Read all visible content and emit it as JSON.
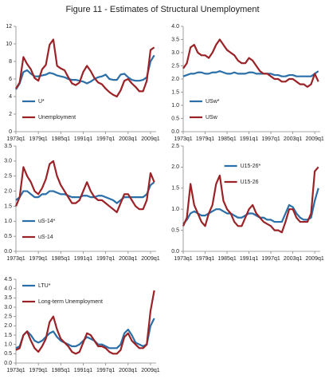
{
  "title": "Figure 11 - Estimates of Structural Unemployment",
  "chart_data": [
    {
      "type": "line",
      "legend": "lower left",
      "x": [
        1973,
        1974,
        1975,
        1976,
        1977,
        1978,
        1979,
        1980,
        1981,
        1982,
        1983,
        1984,
        1985,
        1986,
        1987,
        1988,
        1989,
        1990,
        1991,
        1992,
        1993,
        1994,
        1995,
        1996,
        1997,
        1998,
        1999,
        2000,
        2001,
        2002,
        2003,
        2004,
        2005,
        2006,
        2007,
        2008,
        2009,
        2010
      ],
      "xlim": [
        1973,
        2010.5
      ],
      "xticks": [
        {
          "value": 1973,
          "label": "1973q1"
        },
        {
          "value": 1979,
          "label": "1979q1"
        },
        {
          "value": 1985,
          "label": "1985q1"
        },
        {
          "value": 1991,
          "label": "1991q1"
        },
        {
          "value": 1997,
          "label": "1997q1"
        },
        {
          "value": 2003,
          "label": "2003q1"
        },
        {
          "value": 2009,
          "label": "2009q1"
        }
      ],
      "ylim": [
        0,
        12
      ],
      "yticks": [
        0,
        2,
        4,
        6,
        8,
        10,
        12
      ],
      "series": [
        {
          "name": "U*",
          "color": "#2a6fa8",
          "values": [
            4.8,
            5.5,
            6.8,
            7.0,
            6.6,
            6.3,
            6.3,
            6.4,
            6.5,
            6.7,
            6.6,
            6.4,
            6.3,
            6.2,
            6.0,
            5.9,
            5.9,
            5.8,
            5.7,
            5.5,
            5.7,
            6.0,
            6.2,
            6.3,
            6.5,
            6.0,
            5.9,
            5.9,
            6.5,
            6.6,
            6.2,
            5.9,
            5.8,
            5.8,
            5.9,
            6.2,
            8.0,
            8.7
          ]
        },
        {
          "name": "Unemployment",
          "color": "#9b2226",
          "values": [
            4.9,
            5.6,
            8.5,
            7.7,
            7.1,
            6.1,
            5.8,
            7.1,
            7.6,
            9.9,
            10.5,
            7.5,
            7.2,
            7.0,
            6.2,
            5.5,
            5.3,
            5.6,
            6.8,
            7.5,
            6.9,
            6.1,
            5.6,
            5.4,
            4.9,
            4.5,
            4.2,
            4.0,
            4.7,
            5.8,
            6.0,
            5.5,
            5.1,
            4.6,
            4.6,
            5.8,
            9.3,
            9.6
          ]
        }
      ]
    },
    {
      "type": "line",
      "legend": "lower left",
      "x": [
        1973,
        1974,
        1975,
        1976,
        1977,
        1978,
        1979,
        1980,
        1981,
        1982,
        1983,
        1984,
        1985,
        1986,
        1987,
        1988,
        1989,
        1990,
        1991,
        1992,
        1993,
        1994,
        1995,
        1996,
        1997,
        1998,
        1999,
        2000,
        2001,
        2002,
        2003,
        2004,
        2005,
        2006,
        2007,
        2008,
        2009,
        2010
      ],
      "xlim": [
        1973,
        2010.5
      ],
      "xticks": [
        {
          "value": 1973,
          "label": "1973q1"
        },
        {
          "value": 1979,
          "label": "1979q1"
        },
        {
          "value": 1985,
          "label": "1985q1"
        },
        {
          "value": 1991,
          "label": "1991q1"
        },
        {
          "value": 1997,
          "label": "1997q1"
        },
        {
          "value": 2003,
          "label": "2003q1"
        },
        {
          "value": 2009,
          "label": "2009q1"
        }
      ],
      "ylim": [
        0,
        4
      ],
      "yticks": [
        {
          "value": 0,
          "label": "0.0"
        },
        0.5,
        {
          "value": 1,
          "label": "1.0"
        },
        1.5,
        {
          "value": 2,
          "label": "2.0"
        },
        2.5,
        {
          "value": 3,
          "label": "3.0"
        },
        3.5,
        {
          "value": 4,
          "label": "4.0"
        }
      ],
      "series": [
        {
          "name": "USw*",
          "color": "#2a6fa8",
          "values": [
            2.1,
            2.15,
            2.2,
            2.2,
            2.25,
            2.25,
            2.2,
            2.2,
            2.25,
            2.25,
            2.3,
            2.25,
            2.2,
            2.2,
            2.25,
            2.2,
            2.2,
            2.2,
            2.25,
            2.25,
            2.2,
            2.2,
            2.2,
            2.2,
            2.2,
            2.15,
            2.15,
            2.1,
            2.1,
            2.15,
            2.15,
            2.1,
            2.1,
            2.1,
            2.1,
            2.1,
            2.2,
            2.3
          ]
        },
        {
          "name": "USw",
          "color": "#9b2226",
          "values": [
            2.4,
            2.6,
            3.2,
            3.3,
            3.0,
            2.9,
            2.9,
            2.8,
            3.0,
            3.3,
            3.5,
            3.3,
            3.1,
            3.0,
            2.9,
            2.7,
            2.6,
            2.6,
            2.8,
            2.7,
            2.5,
            2.3,
            2.2,
            2.2,
            2.1,
            2.0,
            2.0,
            1.9,
            1.9,
            2.0,
            2.0,
            1.9,
            1.8,
            1.8,
            1.7,
            1.8,
            2.2,
            1.9
          ]
        }
      ]
    },
    {
      "type": "line",
      "legend": "lower left",
      "x": [
        1973,
        1974,
        1975,
        1976,
        1977,
        1978,
        1979,
        1980,
        1981,
        1982,
        1983,
        1984,
        1985,
        1986,
        1987,
        1988,
        1989,
        1990,
        1991,
        1992,
        1993,
        1994,
        1995,
        1996,
        1997,
        1998,
        1999,
        2000,
        2001,
        2002,
        2003,
        2004,
        2005,
        2006,
        2007,
        2008,
        2009,
        2010
      ],
      "xlim": [
        1973,
        2010.5
      ],
      "xticks": [
        {
          "value": 1973,
          "label": "1973q1"
        },
        {
          "value": 1979,
          "label": "1979q1"
        },
        {
          "value": 1985,
          "label": "1985q1"
        },
        {
          "value": 1991,
          "label": "1991q1"
        },
        {
          "value": 1997,
          "label": "1997q1"
        },
        {
          "value": 2003,
          "label": "2003q1"
        },
        {
          "value": 2009,
          "label": "2009q1"
        }
      ],
      "ylim": [
        0,
        3.5
      ],
      "yticks": [
        {
          "value": 0,
          "label": "0.0"
        },
        0.5,
        {
          "value": 1,
          "label": "1.0"
        },
        1.5,
        {
          "value": 2,
          "label": "2.0"
        },
        2.5,
        {
          "value": 3,
          "label": "3.0"
        },
        3.5
      ],
      "series": [
        {
          "name": "uS-14*",
          "color": "#2a6fa8",
          "values": [
            1.7,
            1.8,
            2.0,
            2.0,
            1.9,
            1.8,
            1.8,
            1.9,
            1.9,
            2.0,
            2.0,
            1.95,
            1.9,
            1.9,
            1.85,
            1.8,
            1.8,
            1.8,
            1.85,
            1.85,
            1.8,
            1.8,
            1.85,
            1.85,
            1.8,
            1.75,
            1.7,
            1.6,
            1.7,
            1.8,
            1.8,
            1.8,
            1.8,
            1.8,
            1.8,
            1.9,
            2.2,
            2.3
          ]
        },
        {
          "name": "uS-14",
          "color": "#9b2226",
          "values": [
            1.5,
            1.8,
            2.8,
            2.5,
            2.3,
            2.0,
            1.9,
            2.1,
            2.4,
            2.9,
            3.0,
            2.5,
            2.2,
            2.0,
            1.8,
            1.6,
            1.6,
            1.7,
            2.0,
            2.3,
            2.0,
            1.8,
            1.7,
            1.7,
            1.6,
            1.5,
            1.4,
            1.3,
            1.6,
            1.9,
            1.9,
            1.7,
            1.5,
            1.4,
            1.4,
            1.7,
            2.6,
            2.3
          ]
        }
      ]
    },
    {
      "type": "line",
      "legend": "upper right",
      "x": [
        1973,
        1974,
        1975,
        1976,
        1977,
        1978,
        1979,
        1980,
        1981,
        1982,
        1983,
        1984,
        1985,
        1986,
        1987,
        1988,
        1989,
        1990,
        1991,
        1992,
        1993,
        1994,
        1995,
        1996,
        1997,
        1998,
        1999,
        2000,
        2001,
        2002,
        2003,
        2004,
        2005,
        2006,
        2007,
        2008,
        2009,
        2010
      ],
      "xlim": [
        1973,
        2010.5
      ],
      "xticks": [
        {
          "value": 1973,
          "label": "1973q1"
        },
        {
          "value": 1979,
          "label": "1979q1"
        },
        {
          "value": 1985,
          "label": "1985q1"
        },
        {
          "value": 1991,
          "label": "1991q1"
        },
        {
          "value": 1997,
          "label": "1997q1"
        },
        {
          "value": 2003,
          "label": "2003q1"
        },
        {
          "value": 2009,
          "label": "2009q1"
        }
      ],
      "ylim": [
        0,
        2.5
      ],
      "yticks": [
        {
          "value": 0,
          "label": "0.0"
        },
        0.5,
        {
          "value": 1,
          "label": "1.0"
        },
        1.5,
        {
          "value": 2,
          "label": "2.0"
        },
        2.5
      ],
      "series": [
        {
          "name": "U15-26*",
          "color": "#2a6fa8",
          "values": [
            0.65,
            0.75,
            0.9,
            0.95,
            0.9,
            0.85,
            0.85,
            0.9,
            0.95,
            1.0,
            1.0,
            0.95,
            0.9,
            0.9,
            0.85,
            0.8,
            0.8,
            0.85,
            0.9,
            0.9,
            0.85,
            0.8,
            0.8,
            0.75,
            0.75,
            0.7,
            0.7,
            0.7,
            0.9,
            1.1,
            1.05,
            0.9,
            0.8,
            0.75,
            0.75,
            0.8,
            1.2,
            1.5
          ]
        },
        {
          "name": "U15-26",
          "color": "#9b2226",
          "values": [
            0.6,
            0.8,
            1.6,
            1.1,
            0.9,
            0.7,
            0.6,
            0.9,
            1.1,
            1.6,
            1.8,
            1.2,
            1.0,
            0.9,
            0.7,
            0.6,
            0.6,
            0.8,
            1.0,
            1.1,
            0.9,
            0.8,
            0.7,
            0.65,
            0.6,
            0.5,
            0.5,
            0.45,
            0.7,
            1.0,
            1.0,
            0.8,
            0.7,
            0.7,
            0.7,
            0.9,
            1.9,
            2.0
          ]
        }
      ]
    },
    {
      "type": "line",
      "legend": "upper left",
      "x": [
        1973,
        1974,
        1975,
        1976,
        1977,
        1978,
        1979,
        1980,
        1981,
        1982,
        1983,
        1984,
        1985,
        1986,
        1987,
        1988,
        1989,
        1990,
        1991,
        1992,
        1993,
        1994,
        1995,
        1996,
        1997,
        1998,
        1999,
        2000,
        2001,
        2002,
        2003,
        2004,
        2005,
        2006,
        2007,
        2008,
        2009,
        2010
      ],
      "xlim": [
        1973,
        2010.5
      ],
      "xticks": [
        {
          "value": 1973,
          "label": "1973q1"
        },
        {
          "value": 1979,
          "label": "1979q1"
        },
        {
          "value": 1985,
          "label": "1985q1"
        },
        {
          "value": 1991,
          "label": "1991q1"
        },
        {
          "value": 1997,
          "label": "1997q1"
        },
        {
          "value": 2003,
          "label": "2003q1"
        },
        {
          "value": 2009,
          "label": "2009q1"
        }
      ],
      "ylim": [
        0,
        4.5
      ],
      "yticks": [
        {
          "value": 0,
          "label": "0.0"
        },
        0.5,
        {
          "value": 1,
          "label": "1.0"
        },
        1.5,
        {
          "value": 2,
          "label": "2.0"
        },
        2.5,
        {
          "value": 3,
          "label": "3.0"
        },
        3.5,
        {
          "value": 4,
          "label": "4.0"
        },
        4.5
      ],
      "series": [
        {
          "name": "LTU*",
          "color": "#2a6fa8",
          "values": [
            0.8,
            0.9,
            1.5,
            1.7,
            1.5,
            1.2,
            1.1,
            1.2,
            1.4,
            1.6,
            1.7,
            1.4,
            1.2,
            1.1,
            1.0,
            0.9,
            0.9,
            1.0,
            1.2,
            1.4,
            1.3,
            1.2,
            1.0,
            1.0,
            0.9,
            0.8,
            0.8,
            0.8,
            1.0,
            1.6,
            1.8,
            1.5,
            1.1,
            1.0,
            0.9,
            1.0,
            2.0,
            2.4
          ]
        },
        {
          "name": "Long-term Unemployment",
          "color": "#9b2226",
          "values": [
            0.7,
            0.8,
            1.5,
            1.7,
            1.2,
            0.8,
            0.6,
            0.9,
            1.3,
            2.2,
            2.5,
            1.8,
            1.3,
            1.1,
            0.9,
            0.6,
            0.5,
            0.6,
            1.1,
            1.6,
            1.5,
            1.2,
            0.9,
            0.9,
            0.8,
            0.6,
            0.5,
            0.5,
            0.7,
            1.4,
            1.6,
            1.2,
            1.0,
            0.8,
            0.8,
            1.0,
            2.8,
            3.9
          ]
        }
      ]
    }
  ]
}
